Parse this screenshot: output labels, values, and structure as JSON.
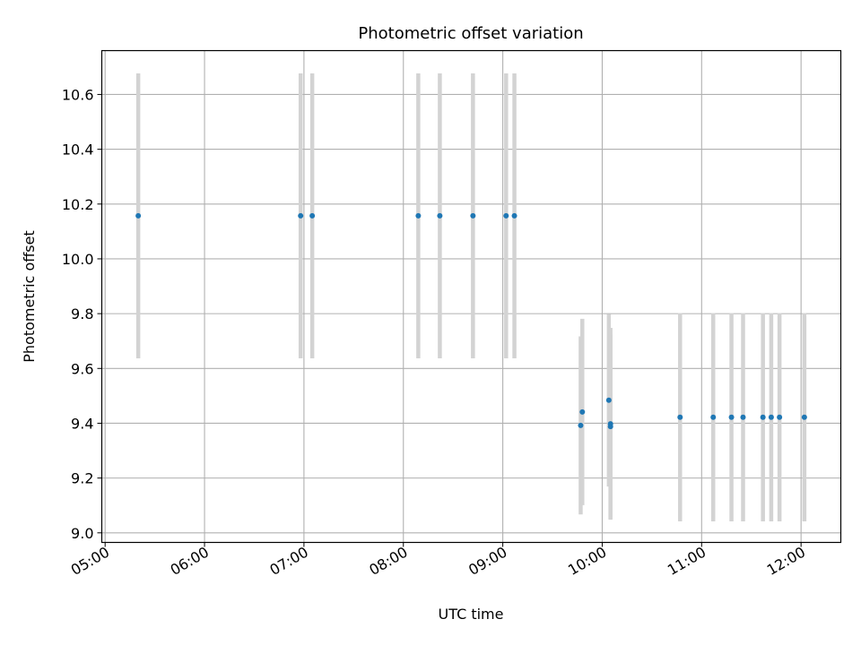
{
  "chart_data": {
    "type": "scatter",
    "title": "Photometric offset variation",
    "xlabel": "UTC time",
    "ylabel": "Photometric offset",
    "xlim": [
      "04:58",
      "12:24"
    ],
    "ylim": [
      8.965,
      10.76
    ],
    "xticks": [
      "05:00",
      "06:00",
      "07:00",
      "08:00",
      "09:00",
      "10:00",
      "11:00",
      "12:00"
    ],
    "yticks": [
      "9.0",
      "9.2",
      "9.4",
      "9.6",
      "9.8",
      "10.0",
      "10.2",
      "10.4",
      "10.6"
    ],
    "grid": true,
    "marker_color": "#1f77b4",
    "errorbar_color": "#d3d3d3",
    "points": [
      {
        "t": "05:20",
        "y": 10.157,
        "err": 0.52
      },
      {
        "t": "06:58",
        "y": 10.157,
        "err": 0.52
      },
      {
        "t": "07:05",
        "y": 10.157,
        "err": 0.52
      },
      {
        "t": "08:09",
        "y": 10.157,
        "err": 0.52
      },
      {
        "t": "08:22",
        "y": 10.157,
        "err": 0.52
      },
      {
        "t": "08:42",
        "y": 10.157,
        "err": 0.52
      },
      {
        "t": "09:02",
        "y": 10.157,
        "err": 0.52
      },
      {
        "t": "09:07",
        "y": 10.157,
        "err": 0.52
      },
      {
        "t": "09:47",
        "y": 9.392,
        "err": 0.325
      },
      {
        "t": "09:48",
        "y": 9.441,
        "err": 0.34
      },
      {
        "t": "10:04",
        "y": 9.484,
        "err": 0.315
      },
      {
        "t": "10:05",
        "y": 9.388,
        "err": 0.335
      },
      {
        "t": "10:05",
        "y": 9.398,
        "err": 0.35
      },
      {
        "t": "10:47",
        "y": 9.422,
        "err": 0.38
      },
      {
        "t": "11:07",
        "y": 9.422,
        "err": 0.38
      },
      {
        "t": "11:18",
        "y": 9.422,
        "err": 0.38
      },
      {
        "t": "11:25",
        "y": 9.422,
        "err": 0.38
      },
      {
        "t": "11:37",
        "y": 9.422,
        "err": 0.38
      },
      {
        "t": "11:42",
        "y": 9.422,
        "err": 0.38
      },
      {
        "t": "11:47",
        "y": 9.422,
        "err": 0.38
      },
      {
        "t": "12:02",
        "y": 9.422,
        "err": 0.38
      }
    ]
  }
}
